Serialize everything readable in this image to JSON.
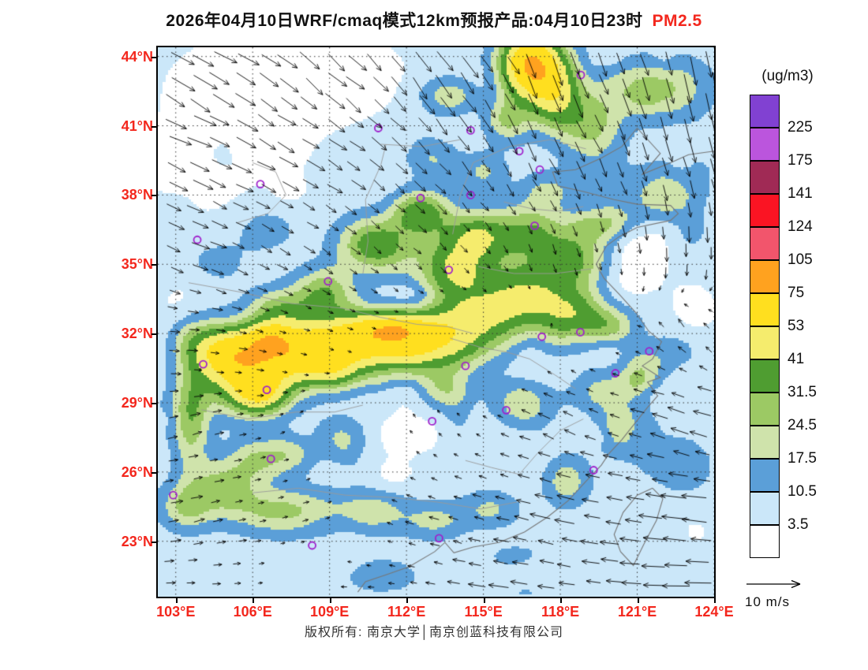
{
  "title": {
    "main": "2026年04月10日WRF/cmaq模式12km预报产品:04月10日23时",
    "pollutant": "PM2.5"
  },
  "footer": {
    "text": "版权所有: 南京大学│南京创蓝科技有限公司"
  },
  "wind_ref": {
    "label": "10 m/s"
  },
  "legend": {
    "title": "(ug/m3)",
    "labels": [
      "225",
      "175",
      "141",
      "124",
      "105",
      "75",
      "53",
      "41",
      "31.5",
      "24.5",
      "17.5",
      "10.5",
      "3.5"
    ]
  },
  "colors": {
    "accent_red": "#f3271d",
    "marker_purple": "#a020cc",
    "arrow_black": "#000000",
    "grid_line": "#333333",
    "coast_line": "#777777",
    "border_line": "#9a9a9a"
  },
  "chart_data": {
    "type": "heatmap",
    "title": "2026年04月10日WRF/cmaq模式12km预报产品:04月10日23时 PM2.5",
    "units": "(ug/m3)",
    "x_axis": {
      "range": [
        102.3,
        124.0
      ],
      "tick_values": [
        103,
        106,
        109,
        112,
        115,
        118,
        121,
        124
      ],
      "tick_labels": [
        "103°E",
        "106°E",
        "109°E",
        "112°E",
        "115°E",
        "118°E",
        "121°E",
        "124°E"
      ]
    },
    "y_axis": {
      "range": [
        20.6,
        44.4
      ],
      "tick_values": [
        23,
        26,
        29,
        32,
        35,
        38,
        41,
        44
      ],
      "tick_labels": [
        "23°N",
        "26°N",
        "29°N",
        "32°N",
        "35°N",
        "38°N",
        "41°N",
        "44°N"
      ]
    },
    "levels": [
      3.5,
      10.5,
      17.5,
      24.5,
      31.5,
      41,
      53,
      75,
      105,
      124,
      141,
      175,
      225
    ],
    "band_colors": [
      "#ffffff",
      "#cbe7f9",
      "#5b9fd8",
      "#cfe3ab",
      "#9cc964",
      "#4f9d31",
      "#f5ec6d",
      "#ffdf1f",
      "#ffa21f",
      "#f2556c",
      "#fa1423",
      "#a02a55",
      "#bb55dd",
      "#8141d2"
    ],
    "base_value": 6.5,
    "noise_bumps": 80,
    "field_bumps": [
      [
        105.5,
        42.5,
        2.8,
        2.2,
        -9
      ],
      [
        109.5,
        43.2,
        2.5,
        1.8,
        -8
      ],
      [
        103.8,
        39.0,
        2.2,
        2.0,
        -7
      ],
      [
        107.5,
        40.5,
        2.0,
        1.5,
        -6
      ],
      [
        110.0,
        38.0,
        1.5,
        1.2,
        -5
      ],
      [
        112.0,
        27.6,
        1.4,
        0.9,
        -7
      ],
      [
        120.6,
        34.3,
        1.2,
        1.0,
        -6
      ],
      [
        121.8,
        36.0,
        1.6,
        1.2,
        -6
      ],
      [
        118.0,
        21.8,
        2.0,
        1.0,
        -5
      ],
      [
        103.4,
        33.5,
        1.5,
        1.5,
        -5
      ],
      [
        111.5,
        25.9,
        0.9,
        0.7,
        -5
      ],
      [
        123.2,
        33.0,
        1.2,
        1.5,
        -5
      ],
      [
        117.0,
        27.3,
        1.0,
        0.8,
        -4
      ],
      [
        122.0,
        29.3,
        0.8,
        0.8,
        -4
      ],
      [
        123.0,
        23.5,
        1.5,
        1.2,
        -4
      ],
      [
        119.8,
        31.2,
        0.7,
        0.6,
        -4
      ],
      [
        105.8,
        30.3,
        1.8,
        1.5,
        48
      ],
      [
        104.8,
        31.3,
        1.2,
        1.0,
        30
      ],
      [
        108.0,
        31.3,
        2.2,
        1.2,
        42
      ],
      [
        110.5,
        31.8,
        2.2,
        1.2,
        40
      ],
      [
        112.8,
        31.5,
        2.0,
        1.3,
        38
      ],
      [
        106.3,
        29.3,
        1.0,
        0.8,
        26
      ],
      [
        109.0,
        30.3,
        1.5,
        0.8,
        18
      ],
      [
        111.5,
        32.3,
        1.5,
        0.6,
        22
      ],
      [
        106.6,
        31.8,
        1.0,
        0.7,
        24
      ],
      [
        114.8,
        32.8,
        1.8,
        1.4,
        30
      ],
      [
        116.8,
        33.8,
        1.8,
        1.5,
        28
      ],
      [
        118.5,
        32.8,
        1.4,
        1.2,
        22
      ],
      [
        113.8,
        34.8,
        1.4,
        1.2,
        30
      ],
      [
        110.8,
        35.8,
        1.4,
        1.2,
        32
      ],
      [
        112.6,
        37.2,
        1.1,
        1.0,
        28
      ],
      [
        114.6,
        36.2,
        1.3,
        1.1,
        26
      ],
      [
        116.8,
        36.4,
        1.6,
        1.2,
        24
      ],
      [
        118.6,
        35.2,
        1.3,
        1.1,
        22
      ],
      [
        108.8,
        33.8,
        1.2,
        1.0,
        24
      ],
      [
        107.0,
        33.0,
        1.2,
        0.9,
        20
      ],
      [
        116.9,
        43.6,
        1.2,
        1.4,
        68
      ],
      [
        117.8,
        42.2,
        1.0,
        1.4,
        30
      ],
      [
        115.9,
        41.3,
        0.9,
        1.0,
        22
      ],
      [
        119.2,
        41.0,
        1.2,
        1.5,
        20
      ],
      [
        113.8,
        42.3,
        1.2,
        0.8,
        18
      ],
      [
        121.0,
        42.6,
        1.5,
        1.2,
        16
      ],
      [
        122.6,
        42.6,
        1.4,
        1.4,
        12
      ],
      [
        120.0,
        36.8,
        1.0,
        0.8,
        16
      ],
      [
        122.0,
        37.8,
        1.3,
        1.0,
        14
      ],
      [
        120.0,
        32.3,
        1.0,
        0.8,
        16
      ],
      [
        121.3,
        30.6,
        0.9,
        0.8,
        12
      ],
      [
        103.6,
        28.3,
        0.7,
        2.2,
        22
      ],
      [
        104.9,
        25.4,
        1.3,
        1.1,
        20
      ],
      [
        107.2,
        24.3,
        2.2,
        1.0,
        20
      ],
      [
        110.7,
        24.3,
        1.3,
        0.9,
        14
      ],
      [
        113.1,
        23.9,
        1.3,
        0.8,
        13
      ],
      [
        115.3,
        24.4,
        1.1,
        0.8,
        12
      ],
      [
        118.2,
        25.6,
        0.9,
        1.1,
        16
      ],
      [
        120.2,
        27.8,
        0.7,
        0.9,
        12
      ],
      [
        106.2,
        26.6,
        1.1,
        0.9,
        16
      ],
      [
        103.4,
        24.5,
        1.0,
        1.0,
        18
      ],
      [
        109.5,
        27.5,
        1.0,
        0.9,
        12
      ],
      [
        107.5,
        26.8,
        0.9,
        0.8,
        12
      ],
      [
        116.5,
        29.0,
        1.1,
        0.9,
        16
      ],
      [
        113.5,
        29.5,
        1.0,
        0.8,
        14
      ],
      [
        119.5,
        29.5,
        1.0,
        0.9,
        12
      ],
      [
        121.0,
        29.9,
        0.7,
        0.6,
        10
      ],
      [
        120.8,
        28.6,
        1.2,
        1.8,
        7
      ],
      [
        122.8,
        26.2,
        1.4,
        1.6,
        7
      ],
      [
        122.6,
        31.4,
        1.1,
        0.9,
        7
      ],
      [
        119.6,
        38.6,
        1.1,
        0.9,
        7
      ],
      [
        122.4,
        38.8,
        1.4,
        1.0,
        6
      ],
      [
        116.5,
        22.3,
        2.0,
        0.8,
        7
      ],
      [
        111.0,
        21.5,
        1.6,
        0.8,
        8
      ],
      [
        123.4,
        36.5,
        1.0,
        1.2,
        5
      ],
      [
        104.5,
        35.0,
        1.3,
        1.1,
        7
      ],
      [
        103.5,
        31.8,
        0.8,
        1.0,
        9
      ],
      [
        106.5,
        36.5,
        1.2,
        1.0,
        7
      ],
      [
        109.5,
        39.8,
        1.2,
        0.9,
        6
      ],
      [
        113.0,
        39.6,
        1.0,
        0.8,
        10
      ],
      [
        115.0,
        39.0,
        0.9,
        0.8,
        12
      ],
      [
        117.5,
        38.2,
        1.0,
        0.8,
        12
      ],
      [
        119.0,
        36.6,
        0.8,
        0.7,
        10
      ]
    ],
    "city_markers": [
      [
        116.4,
        39.9
      ],
      [
        117.2,
        39.1
      ],
      [
        114.5,
        38.0
      ],
      [
        112.55,
        37.87
      ],
      [
        110.9,
        40.9
      ],
      [
        114.5,
        40.8
      ],
      [
        118.8,
        43.2
      ],
      [
        106.3,
        38.47
      ],
      [
        103.84,
        36.06
      ],
      [
        108.94,
        34.26
      ],
      [
        113.65,
        34.76
      ],
      [
        117.0,
        36.67
      ],
      [
        117.28,
        31.86
      ],
      [
        118.78,
        32.06
      ],
      [
        121.47,
        31.23
      ],
      [
        120.15,
        30.28
      ],
      [
        114.3,
        30.6
      ],
      [
        104.07,
        30.67
      ],
      [
        106.55,
        29.56
      ],
      [
        113.0,
        28.2
      ],
      [
        115.89,
        28.68
      ],
      [
        119.3,
        26.08
      ],
      [
        106.71,
        26.57
      ],
      [
        113.27,
        23.13
      ],
      [
        108.32,
        22.82
      ],
      [
        102.9,
        25.0
      ]
    ],
    "wind": {
      "reference_speed_mps": 10,
      "control_points": [
        [
          103.5,
          43.5,
          7,
          -4
        ],
        [
          108,
          43.5,
          6,
          -5
        ],
        [
          113,
          43.5,
          5,
          -7
        ],
        [
          118,
          43.5,
          3,
          -8
        ],
        [
          123,
          43.5,
          2,
          -9
        ],
        [
          103.5,
          40,
          7,
          -3
        ],
        [
          108,
          40,
          6,
          -3
        ],
        [
          113,
          40,
          4,
          -4
        ],
        [
          118,
          40,
          3,
          -6
        ],
        [
          123,
          40,
          2,
          -7
        ],
        [
          103.5,
          36,
          5,
          -2
        ],
        [
          108,
          36,
          3,
          -2
        ],
        [
          113,
          36,
          2,
          -2
        ],
        [
          118,
          36,
          1,
          -3
        ],
        [
          123,
          36,
          0,
          -5
        ],
        [
          103.5,
          32,
          3,
          0
        ],
        [
          108,
          32,
          1.5,
          -0.5
        ],
        [
          113,
          32,
          1,
          1
        ],
        [
          118,
          32,
          0,
          2
        ],
        [
          123,
          32,
          -2,
          3
        ],
        [
          103.5,
          28,
          3,
          1
        ],
        [
          108,
          28,
          1,
          1
        ],
        [
          113,
          28,
          -1,
          1.5
        ],
        [
          118,
          28,
          -4,
          2
        ],
        [
          123,
          28,
          -6,
          2
        ],
        [
          103.5,
          24,
          4,
          1
        ],
        [
          108,
          24,
          2,
          0.5
        ],
        [
          113,
          24,
          -3,
          1
        ],
        [
          118,
          24,
          -6,
          1.5
        ],
        [
          123,
          24,
          -8,
          1
        ],
        [
          103.5,
          21,
          3,
          0
        ],
        [
          110,
          21,
          -2,
          0
        ],
        [
          116,
          21,
          -6,
          1
        ],
        [
          123,
          21,
          -8,
          0
        ]
      ]
    },
    "coastlines": [
      [
        [
          124.0,
          39.9
        ],
        [
          123.0,
          39.75
        ],
        [
          122.3,
          39.4
        ],
        [
          121.2,
          38.9
        ],
        [
          121.9,
          39.8
        ],
        [
          121.0,
          40.9
        ],
        [
          120.4,
          40.1
        ],
        [
          119.6,
          39.6
        ],
        [
          118.6,
          39.1
        ],
        [
          117.7,
          39.0
        ],
        [
          117.9,
          38.4
        ],
        [
          118.9,
          38.15
        ],
        [
          120.1,
          37.8
        ],
        [
          121.0,
          37.6
        ],
        [
          122.3,
          37.55
        ],
        [
          122.6,
          37.2
        ],
        [
          122.3,
          36.9
        ],
        [
          121.0,
          36.6
        ],
        [
          120.3,
          36.2
        ],
        [
          119.8,
          35.8
        ],
        [
          119.4,
          35.0
        ],
        [
          119.7,
          34.4
        ],
        [
          120.3,
          33.7
        ],
        [
          120.95,
          32.9
        ],
        [
          121.45,
          32.1
        ],
        [
          121.95,
          31.65
        ],
        [
          121.6,
          30.9
        ],
        [
          121.2,
          30.6
        ],
        [
          121.9,
          30.1
        ],
        [
          121.4,
          29.9
        ],
        [
          121.8,
          29.3
        ],
        [
          121.4,
          28.8
        ],
        [
          120.9,
          28.1
        ],
        [
          120.4,
          27.4
        ],
        [
          119.9,
          26.8
        ],
        [
          119.6,
          26.3
        ],
        [
          119.0,
          25.6
        ],
        [
          118.3,
          24.75
        ],
        [
          117.5,
          24.05
        ],
        [
          116.6,
          23.4
        ],
        [
          115.6,
          22.95
        ],
        [
          114.6,
          22.75
        ],
        [
          113.85,
          22.5
        ],
        [
          113.5,
          22.95
        ],
        [
          113.1,
          22.55
        ],
        [
          112.1,
          21.9
        ],
        [
          111.2,
          21.55
        ],
        [
          110.4,
          21.25
        ],
        [
          110.1,
          20.8
        ]
      ],
      [
        [
          121.6,
          25.3
        ],
        [
          122.0,
          24.85
        ],
        [
          121.75,
          23.9
        ],
        [
          121.25,
          22.85
        ],
        [
          120.85,
          21.95
        ],
        [
          120.35,
          22.55
        ],
        [
          120.1,
          23.3
        ],
        [
          120.45,
          24.25
        ],
        [
          121.0,
          25.0
        ],
        [
          121.6,
          25.3
        ]
      ]
    ],
    "borders": [
      [
        [
          103.5,
          34.2
        ],
        [
          105.5,
          33.8
        ],
        [
          107.5,
          33.3
        ],
        [
          109.5,
          33.1
        ],
        [
          111.0,
          32.7
        ]
      ],
      [
        [
          110.3,
          34.6
        ],
        [
          110.5,
          36.0
        ],
        [
          110.4,
          37.8
        ],
        [
          111.0,
          39.3
        ],
        [
          111.2,
          40.2
        ]
      ],
      [
        [
          113.8,
          36.3
        ],
        [
          114.1,
          38.0
        ],
        [
          114.6,
          39.4
        ],
        [
          116.0,
          40.1
        ],
        [
          117.6,
          40.4
        ],
        [
          119.0,
          40.0
        ]
      ],
      [
        [
          114.8,
          34.9
        ],
        [
          116.2,
          34.6
        ],
        [
          117.8,
          34.6
        ],
        [
          119.2,
          34.8
        ]
      ],
      [
        [
          106.0,
          25.1
        ],
        [
          107.8,
          25.3
        ],
        [
          109.6,
          25.0
        ],
        [
          111.4,
          24.9
        ],
        [
          113.2,
          24.7
        ],
        [
          114.9,
          24.4
        ],
        [
          116.3,
          24.7
        ]
      ],
      [
        [
          104.0,
          28.7
        ],
        [
          105.8,
          28.3
        ],
        [
          107.7,
          28.6
        ],
        [
          109.2,
          28.6
        ],
        [
          110.3,
          28.9
        ]
      ],
      [
        [
          106.0,
          39.4
        ],
        [
          106.9,
          39.0
        ],
        [
          107.3,
          38.0
        ],
        [
          106.6,
          37.2
        ],
        [
          105.4,
          36.8
        ]
      ],
      [
        [
          114.3,
          26.5
        ],
        [
          115.3,
          26.2
        ],
        [
          116.4,
          25.9
        ],
        [
          117.1,
          26.8
        ],
        [
          118.0,
          27.8
        ],
        [
          118.9,
          28.3
        ]
      ],
      [
        [
          113.7,
          31.8
        ],
        [
          114.9,
          31.4
        ],
        [
          115.9,
          31.2
        ],
        [
          116.8,
          30.9
        ],
        [
          117.8,
          30.2
        ],
        [
          118.6,
          29.6
        ]
      ],
      [
        [
          115.8,
          37.7
        ],
        [
          116.9,
          37.4
        ],
        [
          117.9,
          37.3
        ],
        [
          118.9,
          37.5
        ]
      ],
      [
        [
          111.0,
          40.2
        ],
        [
          112.6,
          40.1
        ],
        [
          114.1,
          40.4
        ]
      ],
      [
        [
          111.0,
          32.7
        ],
        [
          112.4,
          32.4
        ],
        [
          113.6,
          32.3
        ],
        [
          114.6,
          32.0
        ]
      ]
    ]
  }
}
